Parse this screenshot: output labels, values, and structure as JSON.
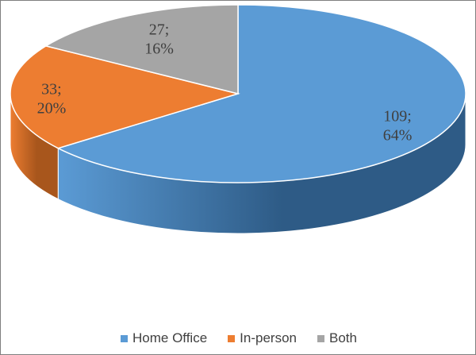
{
  "chart_data": {
    "type": "pie",
    "style": "3d",
    "categories": [
      "Home Office",
      "In-person",
      "Both"
    ],
    "values": [
      109,
      33,
      27
    ],
    "percents": [
      64,
      20,
      16
    ],
    "data_labels": [
      {
        "value_line": "109;",
        "pct_line": "64%"
      },
      {
        "value_line": "33;",
        "pct_line": "20%"
      },
      {
        "value_line": "27;",
        "pct_line": "16%"
      }
    ],
    "colors": [
      "#5b9bd5",
      "#ed7d31",
      "#a5a5a5"
    ],
    "side_colors": [
      "#2e5b86",
      "#a8561c",
      "#6d6d6d"
    ],
    "legend": {
      "position": "bottom",
      "entries": [
        "Home Office",
        "In-person",
        "Both"
      ]
    }
  }
}
